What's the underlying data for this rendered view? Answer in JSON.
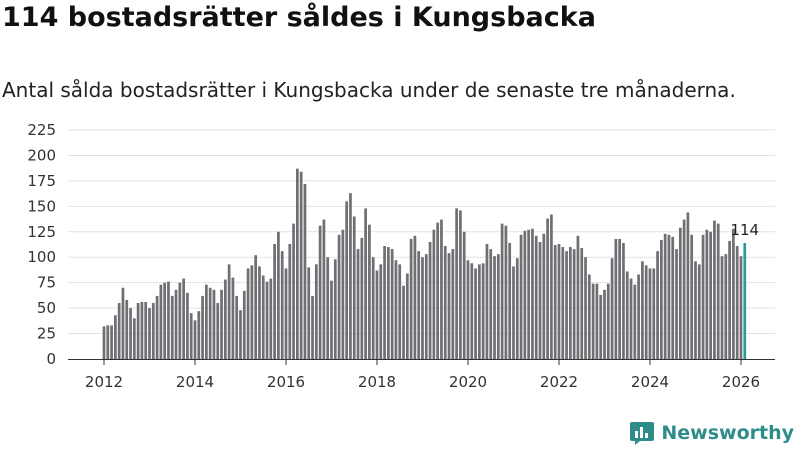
{
  "chart_data": {
    "type": "bar",
    "title": "114 bostadsrätter såldes i Kungsbacka",
    "subtitle": "Antal sålda bostadsrätter i Kungsbacka under de senaste tre månaderna.",
    "xlabel": "",
    "ylabel": "",
    "ylim": [
      0,
      225
    ],
    "y_ticks": [
      "0",
      "25",
      "50",
      "75",
      "100",
      "125",
      "150",
      "175",
      "200",
      "225"
    ],
    "x_ticks": [
      "2012",
      "2014",
      "2016",
      "2018",
      "2020",
      "2022",
      "2024",
      "2026"
    ],
    "x_start_year": 2012,
    "x_end_year": 2026,
    "first_bar_year": 2012.0,
    "bar_step_years": 0.08333,
    "grid": true,
    "series": [
      {
        "name": "Antal sålda bostadsrätter",
        "color": "#706f74",
        "values": [
          32,
          33,
          33,
          43,
          55,
          70,
          58,
          50,
          40,
          55,
          56,
          56,
          50,
          55,
          62,
          73,
          75,
          76,
          62,
          68,
          75,
          79,
          65,
          45,
          38,
          47,
          62,
          73,
          70,
          68,
          55,
          68,
          78,
          93,
          80,
          62,
          48,
          67,
          89,
          92,
          102,
          91,
          82,
          76,
          79,
          113,
          125,
          106,
          89,
          113,
          133,
          187,
          184,
          172,
          90,
          62,
          93,
          131,
          137,
          100,
          77,
          98,
          122,
          127,
          155,
          163,
          140,
          108,
          119,
          148,
          132,
          100,
          87,
          93,
          111,
          110,
          108,
          97,
          93,
          72,
          84,
          118,
          121,
          106,
          100,
          103,
          115,
          127,
          134,
          137,
          111,
          104,
          108,
          148,
          146,
          125,
          97,
          94,
          89,
          93,
          94,
          113,
          108,
          101,
          103,
          133,
          131,
          114,
          91,
          99,
          122,
          126,
          127,
          128,
          121,
          115,
          123,
          138,
          142,
          112,
          113,
          110,
          106,
          110,
          108,
          121,
          109,
          100,
          83,
          74,
          74,
          63,
          68,
          74,
          99,
          118,
          118,
          114,
          86,
          79,
          73,
          83,
          96,
          92,
          89,
          89,
          106,
          117,
          123,
          122,
          120,
          108,
          129,
          137,
          144,
          122,
          96,
          93,
          122,
          127,
          125,
          136,
          133,
          101,
          103,
          116,
          128,
          111,
          101,
          114
        ],
        "highlight_last": true,
        "highlight_color": "#2a9d98"
      }
    ],
    "annotations": [
      {
        "label": "114",
        "target": "last_bar"
      }
    ]
  },
  "brand": {
    "name": "Newsworthy"
  }
}
